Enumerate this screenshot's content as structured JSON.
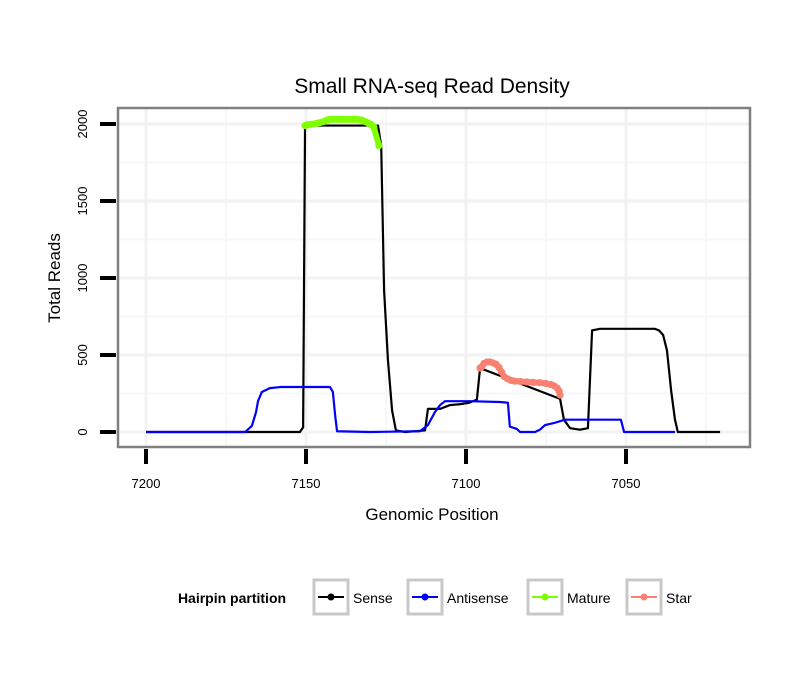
{
  "chart_data": {
    "type": "line",
    "title": "Small RNA-seq Read Density",
    "xlabel": "Genomic Position",
    "ylabel": "Total Reads",
    "xlim": [
      7209,
      7012
    ],
    "x_reversed": true,
    "ylim": [
      -100,
      2100
    ],
    "xticks": [
      7200,
      7150,
      7100,
      7050
    ],
    "yticks": [
      0,
      500,
      1000,
      1500,
      2000
    ],
    "grid": true,
    "legend": {
      "title": "Hairpin partition",
      "placement": "bottom",
      "entries": [
        "Sense",
        "Antisense",
        "Mature",
        "Star"
      ]
    },
    "colors": {
      "Sense": "#000000",
      "Antisense": "#0000ff",
      "Mature": "#7fff00",
      "Star": "#fa8072"
    },
    "series": [
      {
        "name": "Sense",
        "kind": "line",
        "points": [
          [
            7200,
            0
          ],
          [
            7151.9,
            0
          ],
          [
            7150.9,
            30
          ],
          [
            7150.3,
            1990
          ],
          [
            7127.5,
            1990
          ],
          [
            7126.5,
            1860
          ],
          [
            7125.6,
            920
          ],
          [
            7124.4,
            470
          ],
          [
            7123.1,
            140
          ],
          [
            7121.9,
            10
          ],
          [
            7119,
            0
          ],
          [
            7112.8,
            10
          ],
          [
            7111.9,
            150
          ],
          [
            7108.1,
            150
          ],
          [
            7105,
            175
          ],
          [
            7102,
            180
          ],
          [
            7099,
            190
          ],
          [
            7096.6,
            210
          ],
          [
            7095.6,
            415
          ],
          [
            7070.6,
            215
          ],
          [
            7069.4,
            80
          ],
          [
            7067.5,
            25
          ],
          [
            7064.4,
            15
          ],
          [
            7061.9,
            25
          ],
          [
            7060.6,
            660
          ],
          [
            7058.1,
            670
          ],
          [
            7041,
            670
          ],
          [
            7039.7,
            660
          ],
          [
            7038.4,
            630
          ],
          [
            7037.2,
            530
          ],
          [
            7035.9,
            270
          ],
          [
            7034.7,
            80
          ],
          [
            7033.8,
            0
          ],
          [
            7020.6,
            0
          ]
        ]
      },
      {
        "name": "Antisense",
        "kind": "line",
        "points": [
          [
            7200,
            0
          ],
          [
            7169,
            0
          ],
          [
            7166.9,
            40
          ],
          [
            7165.6,
            130
          ],
          [
            7165,
            200
          ],
          [
            7163.8,
            260
          ],
          [
            7161.3,
            285
          ],
          [
            7158,
            292
          ],
          [
            7142.5,
            292
          ],
          [
            7141.6,
            260
          ],
          [
            7140.9,
            110
          ],
          [
            7140.3,
            5
          ],
          [
            7130,
            0
          ],
          [
            7114.4,
            5
          ],
          [
            7111.9,
            45
          ],
          [
            7109.7,
            130
          ],
          [
            7108.1,
            175
          ],
          [
            7106.6,
            200
          ],
          [
            7098.8,
            200
          ],
          [
            7089.4,
            195
          ],
          [
            7086.9,
            190
          ],
          [
            7086.3,
            35
          ],
          [
            7084.1,
            20
          ],
          [
            7083.1,
            0
          ],
          [
            7078.4,
            0
          ],
          [
            7076.9,
            15
          ],
          [
            7075.3,
            45
          ],
          [
            7072.2,
            60
          ],
          [
            7069.1,
            80
          ],
          [
            7051.6,
            80
          ],
          [
            7050.6,
            0
          ],
          [
            7034.7,
            0
          ]
        ]
      },
      {
        "name": "Mature",
        "kind": "points",
        "points": [
          [
            7150.3,
            1990
          ],
          [
            7149.5,
            1995
          ],
          [
            7148.5,
            1998
          ],
          [
            7147.5,
            2000
          ],
          [
            7146.5,
            2005
          ],
          [
            7145.5,
            2010
          ],
          [
            7144.5,
            2015
          ],
          [
            7143.5,
            2025
          ],
          [
            7142.5,
            2030
          ],
          [
            7141.5,
            2030
          ],
          [
            7140.5,
            2030
          ],
          [
            7139.5,
            2030
          ],
          [
            7138.5,
            2030
          ],
          [
            7137.5,
            2030
          ],
          [
            7136.5,
            2030
          ],
          [
            7135.5,
            2030
          ],
          [
            7134.5,
            2030
          ],
          [
            7133.5,
            2028
          ],
          [
            7132.5,
            2025
          ],
          [
            7131.5,
            2015
          ],
          [
            7130.5,
            2005
          ],
          [
            7129.5,
            1995
          ],
          [
            7128.8,
            1980
          ],
          [
            7127.2,
            1860
          ]
        ]
      },
      {
        "name": "Star",
        "kind": "points",
        "points": [
          [
            7095.6,
            415
          ],
          [
            7095,
            425
          ],
          [
            7094.4,
            445
          ],
          [
            7093.4,
            455
          ],
          [
            7092.5,
            455
          ],
          [
            7091.5,
            448
          ],
          [
            7090.6,
            440
          ],
          [
            7089.7,
            420
          ],
          [
            7088.9,
            390
          ],
          [
            7088.1,
            360
          ],
          [
            7087,
            345
          ],
          [
            7085.9,
            335
          ],
          [
            7084.7,
            330
          ],
          [
            7083,
            328
          ],
          [
            7081,
            325
          ],
          [
            7079,
            322
          ],
          [
            7077,
            320
          ],
          [
            7075,
            315
          ],
          [
            7073.5,
            308
          ],
          [
            7072.5,
            300
          ],
          [
            7071.5,
            285
          ],
          [
            7070.9,
            265
          ],
          [
            7070.6,
            240
          ]
        ]
      }
    ]
  }
}
